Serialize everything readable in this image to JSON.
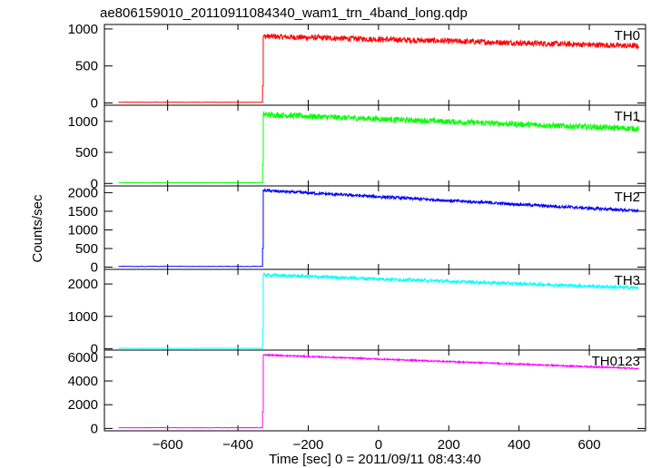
{
  "chart_data": {
    "type": "line",
    "title": "ae806159010_20110911084340_wam1_trn_4band_long.qdp",
    "xlabel": "Time [sec] 0 = 2011/09/11 08:43:40",
    "ylabel": "Counts/sec",
    "xlim": [
      -780,
      760
    ],
    "x_ticks": [
      -600,
      -400,
      -200,
      0,
      200,
      400,
      600
    ],
    "x_tick_labels": [
      "−600",
      "−400",
      "−200",
      "0",
      "200",
      "400",
      "600"
    ],
    "x_start": -740,
    "x_end": 740,
    "onset_time": -330,
    "panels": [
      {
        "name": "TH0",
        "color": "#ff0000",
        "ylim": [
          -30,
          1060
        ],
        "y_ticks": [
          0,
          500,
          1000
        ],
        "y_tick_labels": [
          "0",
          "500",
          "1000"
        ],
        "background": 10,
        "jump_value": 230,
        "peak": 900,
        "end": 770,
        "noise": 38
      },
      {
        "name": "TH1",
        "color": "#00ff00",
        "ylim": [
          -40,
          1260
        ],
        "y_ticks": [
          0,
          500,
          1000
        ],
        "y_tick_labels": [
          "0",
          "500",
          "1000"
        ],
        "background": 12,
        "jump_value": 300,
        "peak": 1110,
        "end": 880,
        "noise": 45
      },
      {
        "name": "TH2",
        "color": "#0000ff",
        "ylim": [
          -60,
          2180
        ],
        "y_ticks": [
          0,
          500,
          1000,
          1500,
          2000
        ],
        "y_tick_labels": [
          "0",
          "500",
          "1000",
          "1500",
          "2000"
        ],
        "background": 20,
        "jump_value": 500,
        "peak": 2060,
        "end": 1510,
        "noise": 40
      },
      {
        "name": "TH3",
        "color": "#00ffff",
        "ylim": [
          -40,
          2450
        ],
        "y_ticks": [
          0,
          1000,
          2000
        ],
        "y_tick_labels": [
          "0",
          "1000",
          "2000"
        ],
        "background": 15,
        "jump_value": 600,
        "peak": 2280,
        "end": 1880,
        "noise": 50
      },
      {
        "name": "TH0123",
        "color": "#ff00ff",
        "ylim": [
          -200,
          6600
        ],
        "y_ticks": [
          0,
          2000,
          4000,
          6000
        ],
        "y_tick_labels": [
          "0",
          "2000",
          "4000",
          "6000"
        ],
        "background": 60,
        "jump_value": 1400,
        "peak": 6200,
        "end": 5050,
        "noise": 60
      }
    ],
    "grid": false,
    "legend": "panel labels top-right"
  }
}
